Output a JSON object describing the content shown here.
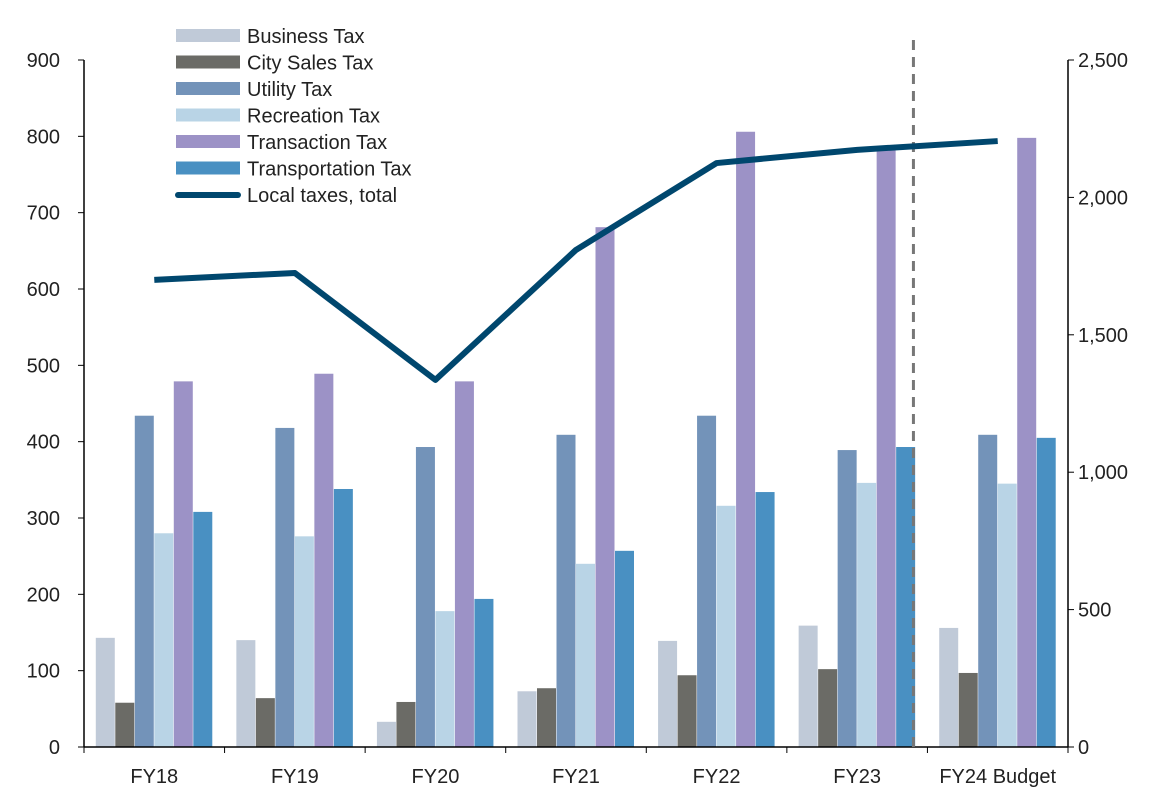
{
  "chart_data": {
    "type": "bar",
    "categories": [
      "FY18",
      "FY19",
      "FY20",
      "FY21",
      "FY22",
      "FY23",
      "FY24 Budget"
    ],
    "series": [
      {
        "name": "Business Tax",
        "type": "bar",
        "axis": "left",
        "color": "#c0cad8",
        "values": [
          143,
          140,
          33,
          73,
          139,
          159,
          156
        ]
      },
      {
        "name": "City Sales Tax",
        "type": "bar",
        "axis": "left",
        "color": "#6b6b66",
        "values": [
          58,
          64,
          59,
          77,
          94,
          102,
          97
        ]
      },
      {
        "name": "Utility Tax",
        "type": "bar",
        "axis": "left",
        "color": "#7393b9",
        "values": [
          434,
          418,
          393,
          409,
          434,
          389,
          409
        ]
      },
      {
        "name": "Recreation Tax",
        "type": "bar",
        "axis": "left",
        "color": "#b9d4e6",
        "values": [
          280,
          276,
          178,
          240,
          316,
          346,
          345
        ]
      },
      {
        "name": "Transaction Tax",
        "type": "bar",
        "axis": "left",
        "color": "#9c92c6",
        "values": [
          479,
          489,
          479,
          681,
          806,
          782,
          798
        ]
      },
      {
        "name": "Transportation Tax",
        "type": "bar",
        "axis": "left",
        "color": "#4990c2",
        "values": [
          308,
          338,
          194,
          257,
          334,
          393,
          405
        ]
      },
      {
        "name": "Local taxes, total",
        "type": "line",
        "axis": "right",
        "color": "#00476e",
        "values": [
          1700,
          1725,
          1336,
          1809,
          2125,
          2173,
          2205
        ]
      }
    ],
    "ylim": [
      0,
      900
    ],
    "yticks": [
      "0",
      "100",
      "200",
      "300",
      "400",
      "500",
      "600",
      "700",
      "800",
      "900"
    ],
    "y2lim": [
      0,
      2500
    ],
    "y2ticks": [
      "0",
      "500",
      "1,000",
      "1,500",
      "2,000",
      "2,500"
    ],
    "legend": "top-left",
    "grid": false,
    "annotation": "dashed vertical separator before FY24 Budget"
  }
}
